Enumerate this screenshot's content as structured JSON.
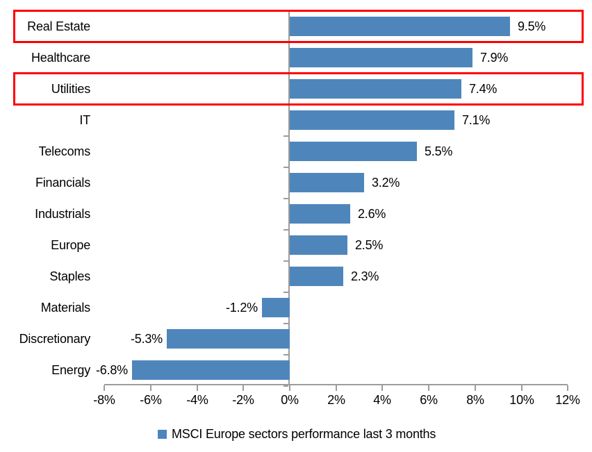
{
  "chart_data": {
    "type": "bar",
    "orientation": "horizontal",
    "title": "",
    "categories": [
      "Real Estate",
      "Healthcare",
      "Utilities",
      "IT",
      "Telecoms",
      "Financials",
      "Industrials",
      "Europe",
      "Staples",
      "Materials",
      "Discretionary",
      "Energy"
    ],
    "values": [
      9.5,
      7.9,
      7.4,
      7.1,
      5.5,
      3.2,
      2.6,
      2.5,
      2.3,
      -1.2,
      -5.3,
      -6.8
    ],
    "data_labels": [
      "9.5%",
      "7.9%",
      "7.4%",
      "7.1%",
      "5.5%",
      "3.2%",
      "2.6%",
      "2.5%",
      "2.3%",
      "-1.2%",
      "-5.3%",
      "-6.8%"
    ],
    "highlighted_categories": [
      "Real Estate",
      "Utilities"
    ],
    "xlim": [
      -8,
      12
    ],
    "x_tick_values": [
      -8,
      -6,
      -4,
      -2,
      0,
      2,
      4,
      6,
      8,
      10,
      12
    ],
    "x_tick_labels": [
      "-8%",
      "-6%",
      "-4%",
      "-2%",
      "0%",
      "2%",
      "4%",
      "6%",
      "8%",
      "10%",
      "12%"
    ],
    "grid": false,
    "legend": "MSCI Europe sectors performance last 3 months",
    "legend_position": "bottom",
    "colors": {
      "bar": "#4E86BC",
      "highlight_box": "#FF0000",
      "axis": "#9C9C9C",
      "text": "#000000"
    }
  }
}
